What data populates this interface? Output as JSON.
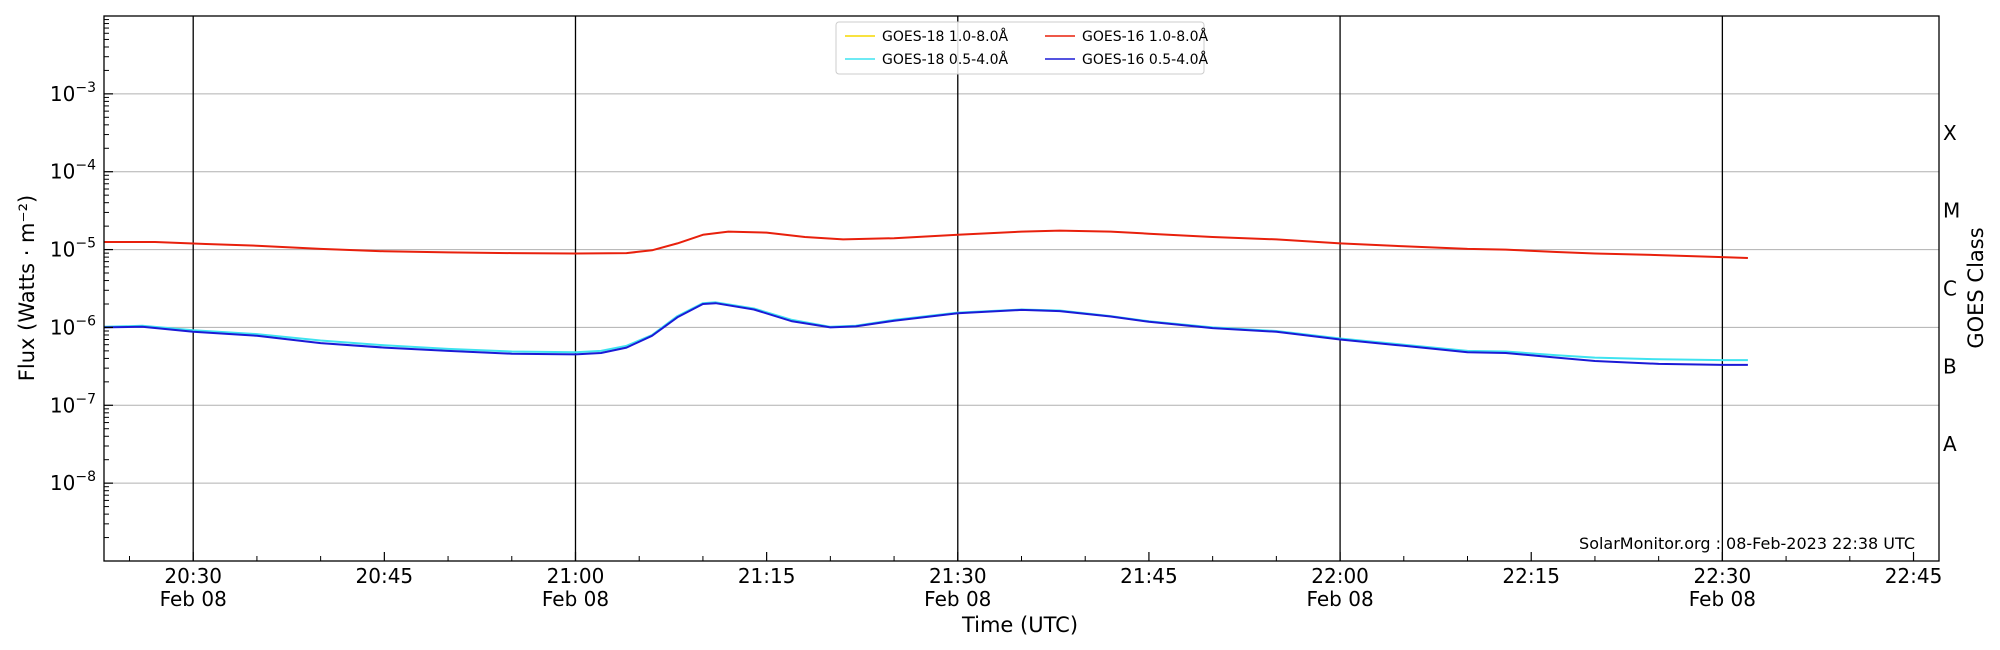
{
  "chart_data": {
    "type": "line",
    "xlabel": "Time (UTC)",
    "ylabel": "Flux (Watts · m⁻²)",
    "y2label": "GOES Class",
    "y_scale": "log",
    "ylim": [
      1e-09,
      0.01
    ],
    "xlim": [
      "2023-02-08 20:23",
      "2023-02-08 22:47"
    ],
    "grid": "horizontal",
    "legend_position": "top-center",
    "credit": "SolarMonitor.org : 08-Feb-2023 22:38 UTC",
    "x_ticks": [
      {
        "time": "20:30",
        "date": "Feb 08"
      },
      {
        "time": "20:45",
        "date": ""
      },
      {
        "time": "21:00",
        "date": "Feb 08"
      },
      {
        "time": "21:15",
        "date": ""
      },
      {
        "time": "21:30",
        "date": "Feb 08"
      },
      {
        "time": "21:45",
        "date": ""
      },
      {
        "time": "22:00",
        "date": "Feb 08"
      },
      {
        "time": "22:15",
        "date": ""
      },
      {
        "time": "22:30",
        "date": "Feb 08"
      },
      {
        "time": "22:45",
        "date": ""
      }
    ],
    "vertical_lines": [
      "20:30",
      "21:00",
      "21:30",
      "22:00",
      "22:30"
    ],
    "y_ticks": [
      {
        "value": 1e-08,
        "base": "10",
        "exp": "−8"
      },
      {
        "value": 1e-07,
        "base": "10",
        "exp": "−7"
      },
      {
        "value": 1e-06,
        "base": "10",
        "exp": "−6"
      },
      {
        "value": 1e-05,
        "base": "10",
        "exp": "−5"
      },
      {
        "value": 0.0001,
        "base": "10",
        "exp": "−4"
      },
      {
        "value": 0.001,
        "base": "10",
        "exp": "−3"
      }
    ],
    "goes_classes": [
      {
        "label": "A",
        "value": 3.16e-08
      },
      {
        "label": "B",
        "value": 3.16e-07
      },
      {
        "label": "C",
        "value": 3.16e-06
      },
      {
        "label": "M",
        "value": 3.16e-05
      },
      {
        "label": "X",
        "value": 0.000316
      }
    ],
    "series": [
      {
        "name": "GOES-18 1.0-8.0Å",
        "color": "#f5d800",
        "points": []
      },
      {
        "name": "GOES-16 1.0-8.0Å",
        "color": "#e8200c",
        "points": [
          [
            "20:23",
            1.25e-05
          ],
          [
            "20:27",
            1.25e-05
          ],
          [
            "20:31",
            1.18e-05
          ],
          [
            "20:35",
            1.12e-05
          ],
          [
            "20:40",
            1.02e-05
          ],
          [
            "20:45",
            9.5e-06
          ],
          [
            "20:50",
            9.2e-06
          ],
          [
            "20:55",
            9e-06
          ],
          [
            "21:00",
            8.9e-06
          ],
          [
            "21:04",
            9e-06
          ],
          [
            "21:06",
            9.8e-06
          ],
          [
            "21:08",
            1.2e-05
          ],
          [
            "21:10",
            1.55e-05
          ],
          [
            "21:12",
            1.7e-05
          ],
          [
            "21:15",
            1.65e-05
          ],
          [
            "21:18",
            1.45e-05
          ],
          [
            "21:21",
            1.35e-05
          ],
          [
            "21:25",
            1.4e-05
          ],
          [
            "21:30",
            1.55e-05
          ],
          [
            "21:35",
            1.7e-05
          ],
          [
            "21:38",
            1.75e-05
          ],
          [
            "21:42",
            1.7e-05
          ],
          [
            "21:45",
            1.6e-05
          ],
          [
            "21:50",
            1.45e-05
          ],
          [
            "21:55",
            1.35e-05
          ],
          [
            "22:00",
            1.2e-05
          ],
          [
            "22:05",
            1.1e-05
          ],
          [
            "22:10",
            1.02e-05
          ],
          [
            "22:13",
            1e-05
          ],
          [
            "22:17",
            9.3e-06
          ],
          [
            "22:20",
            8.9e-06
          ],
          [
            "22:25",
            8.5e-06
          ],
          [
            "22:30",
            8e-06
          ],
          [
            "22:32",
            7.8e-06
          ]
        ]
      },
      {
        "name": "GOES-18 0.5-4.0Å",
        "color": "#3fe3f0",
        "points": [
          [
            "20:23",
            1.02e-06
          ],
          [
            "20:26",
            1.05e-06
          ],
          [
            "20:30",
            9.2e-07
          ],
          [
            "20:35",
            8.2e-07
          ],
          [
            "20:40",
            6.8e-07
          ],
          [
            "20:45",
            5.9e-07
          ],
          [
            "20:50",
            5.3e-07
          ],
          [
            "20:55",
            4.9e-07
          ],
          [
            "21:00",
            4.8e-07
          ],
          [
            "21:02",
            5e-07
          ],
          [
            "21:04",
            5.8e-07
          ],
          [
            "21:06",
            8e-07
          ],
          [
            "21:08",
            1.4e-06
          ],
          [
            "21:10",
            2.05e-06
          ],
          [
            "21:11",
            2.1e-06
          ],
          [
            "21:14",
            1.75e-06
          ],
          [
            "21:17",
            1.25e-06
          ],
          [
            "21:20",
            1.02e-06
          ],
          [
            "21:22",
            1.05e-06
          ],
          [
            "21:25",
            1.25e-06
          ],
          [
            "21:30",
            1.55e-06
          ],
          [
            "21:35",
            1.7e-06
          ],
          [
            "21:38",
            1.65e-06
          ],
          [
            "21:42",
            1.4e-06
          ],
          [
            "21:45",
            1.2e-06
          ],
          [
            "21:50",
            1e-06
          ],
          [
            "21:55",
            9e-07
          ],
          [
            "22:00",
            7.2e-07
          ],
          [
            "22:05",
            6e-07
          ],
          [
            "22:10",
            5e-07
          ],
          [
            "22:13",
            4.9e-07
          ],
          [
            "22:17",
            4.4e-07
          ],
          [
            "22:20",
            4.1e-07
          ],
          [
            "22:25",
            3.9e-07
          ],
          [
            "22:30",
            3.8e-07
          ],
          [
            "22:32",
            3.8e-07
          ]
        ]
      },
      {
        "name": "GOES-16 0.5-4.0Å",
        "color": "#1b1ad6",
        "points": [
          [
            "20:23",
            1e-06
          ],
          [
            "20:26",
            1.02e-06
          ],
          [
            "20:30",
            8.8e-07
          ],
          [
            "20:35",
            7.8e-07
          ],
          [
            "20:40",
            6.3e-07
          ],
          [
            "20:45",
            5.5e-07
          ],
          [
            "20:50",
            5e-07
          ],
          [
            "20:55",
            4.6e-07
          ],
          [
            "21:00",
            4.5e-07
          ],
          [
            "21:02",
            4.7e-07
          ],
          [
            "21:04",
            5.5e-07
          ],
          [
            "21:06",
            7.8e-07
          ],
          [
            "21:08",
            1.35e-06
          ],
          [
            "21:10",
            2e-06
          ],
          [
            "21:11",
            2.05e-06
          ],
          [
            "21:14",
            1.7e-06
          ],
          [
            "21:17",
            1.2e-06
          ],
          [
            "21:20",
            1e-06
          ],
          [
            "21:22",
            1.03e-06
          ],
          [
            "21:25",
            1.22e-06
          ],
          [
            "21:30",
            1.52e-06
          ],
          [
            "21:35",
            1.68e-06
          ],
          [
            "21:38",
            1.62e-06
          ],
          [
            "21:42",
            1.38e-06
          ],
          [
            "21:45",
            1.18e-06
          ],
          [
            "21:50",
            9.8e-07
          ],
          [
            "21:55",
            8.8e-07
          ],
          [
            "22:00",
            7e-07
          ],
          [
            "22:05",
            5.8e-07
          ],
          [
            "22:10",
            4.8e-07
          ],
          [
            "22:13",
            4.7e-07
          ],
          [
            "22:17",
            4.1e-07
          ],
          [
            "22:20",
            3.7e-07
          ],
          [
            "22:25",
            3.4e-07
          ],
          [
            "22:30",
            3.3e-07
          ],
          [
            "22:32",
            3.3e-07
          ]
        ]
      }
    ]
  }
}
